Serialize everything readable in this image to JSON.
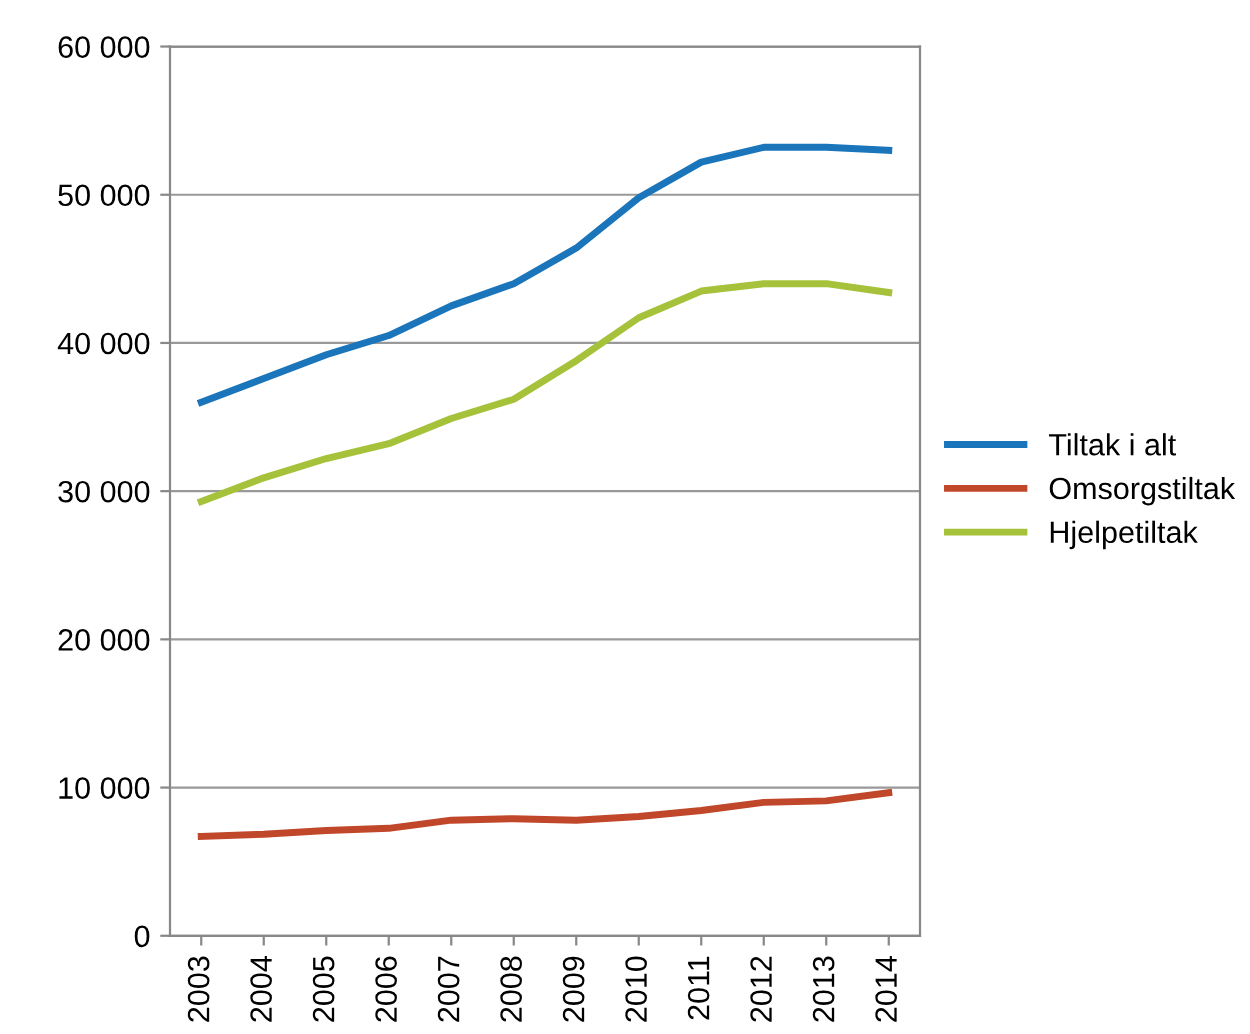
{
  "chart_data": {
    "type": "line",
    "categories": [
      "2003",
      "2004",
      "2005",
      "2006",
      "2007",
      "2008",
      "2009",
      "2010",
      "2011",
      "2012",
      "2013",
      "2014"
    ],
    "series": [
      {
        "name": "Tiltak i alt",
        "color": "#1a75bb",
        "values": [
          36000,
          37600,
          39200,
          40500,
          42500,
          44000,
          46400,
          49800,
          52200,
          53200,
          53200,
          53000
        ]
      },
      {
        "name": "Omsorgstiltak",
        "color": "#c0472a",
        "values": [
          6700,
          6850,
          7100,
          7250,
          7800,
          7900,
          7800,
          8050,
          8450,
          9000,
          9100,
          9650
        ]
      },
      {
        "name": "Hjelpetiltak",
        "color": "#a5c23a",
        "values": [
          29300,
          30900,
          32200,
          33200,
          34900,
          36200,
          38800,
          41700,
          43500,
          44000,
          44000,
          43400
        ]
      }
    ],
    "ylim": [
      0,
      60000
    ],
    "yticks": [
      {
        "value": 0,
        "label": "0"
      },
      {
        "value": 10000,
        "label": "10 000"
      },
      {
        "value": 20000,
        "label": "20 000"
      },
      {
        "value": 30000,
        "label": "30 000"
      },
      {
        "value": 40000,
        "label": "40 000"
      },
      {
        "value": 50000,
        "label": "50 000"
      },
      {
        "value": 60000,
        "label": "60 000"
      }
    ],
    "grid": "y",
    "legend": "right",
    "marker": "none",
    "line_style": "solid"
  }
}
